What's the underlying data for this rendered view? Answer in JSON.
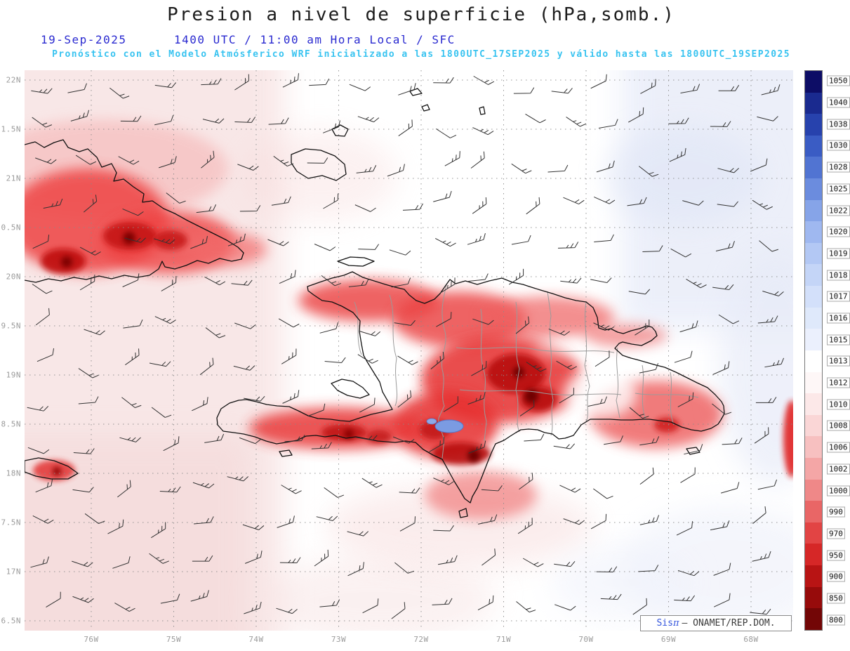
{
  "header": {
    "title": "Presion a nivel de superficie (hPa,somb.)",
    "date": "19-Sep-2025",
    "valid_line": "1400 UTC / 11:00 am Hora Local / SFC",
    "model_line": "Pronóstico con el Modelo Atmósferico WRF inicializado a las 1800UTC_17SEP2025 y válido hasta las  1800UTC_19SEP2025"
  },
  "watermark": {
    "brand_prefix": "Sis",
    "brand_pi": "π",
    "org": "– ONAMET/REP.DOM."
  },
  "chart_data": {
    "type": "heatmap",
    "title": "Presion a nivel de superficie (hPa,somb.)",
    "variable": "surface pressure (hPa, shaded) with wind barbs",
    "region": "Eastern Cuba, Haiti and Dominican Republic (Hispaniola)",
    "x_tick_labels": [
      "76W",
      "75W",
      "74W",
      "73W",
      "72W",
      "71W",
      "70W",
      "69W",
      "68W"
    ],
    "y_tick_labels": [
      "22N",
      "1.5N",
      "21N",
      "0.5N",
      "20N",
      "9.5N",
      "19N",
      "8.5N",
      "18N",
      "7.5N",
      "17N",
      "6.5N"
    ],
    "grid": "dotted",
    "legend_position": "right",
    "overlays": [
      "wind-barbs",
      "coastlines",
      "province-boundaries",
      "lake"
    ],
    "colorbar": {
      "units": "hPa",
      "levels": [
        "1050",
        "1040",
        "1038",
        "1030",
        "1028",
        "1025",
        "1022",
        "1020",
        "1019",
        "1018",
        "1017",
        "1016",
        "1015",
        "1013",
        "1012",
        "1010",
        "1008",
        "1006",
        "1002",
        "1000",
        "990",
        "970",
        "950",
        "900",
        "850",
        "800"
      ],
      "colors": [
        "#0d0d66",
        "#1a2a8f",
        "#2742ad",
        "#3a5cc4",
        "#5174d2",
        "#6b8cde",
        "#86a4e8",
        "#9fb8f0",
        "#b3c8f4",
        "#c4d5f7",
        "#d3e0fa",
        "#dfe9fb",
        "#ebf0fd",
        "#ffffff",
        "#fef7f7",
        "#fce8e8",
        "#fad6d6",
        "#f7c0c0",
        "#f4a6a6",
        "#ef8888",
        "#e96666",
        "#e24444",
        "#d62727",
        "#b81414",
        "#970b0b",
        "#730606"
      ]
    }
  },
  "colors": {
    "subtitle_blue": "#2a2ad0",
    "subtitle_cyan": "#38c3f0",
    "tick_gray": "#9b9b9b",
    "low_pressure_red": "#d62727",
    "high_pressure_blue": "#3a5cc4"
  }
}
